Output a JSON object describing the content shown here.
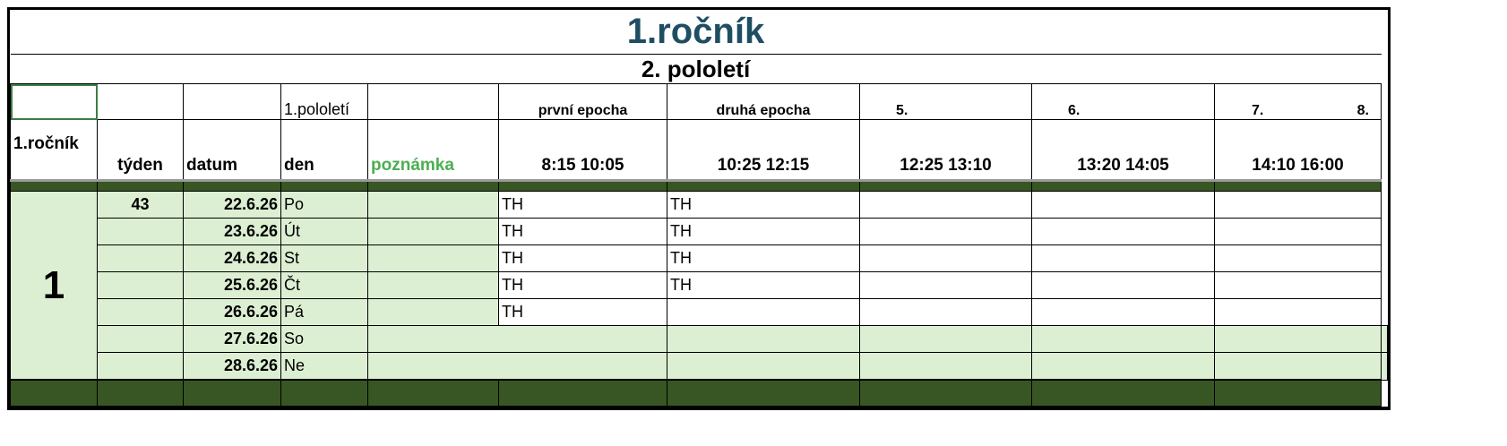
{
  "title": "1.ročník",
  "subtitle": "2. pololetí",
  "header_row1": [
    "",
    "",
    "",
    "1.pololetí",
    "",
    "první epocha",
    "druhá epocha",
    "5.",
    "6.",
    "7.",
    "8."
  ],
  "header_row2": [
    "1.ročník",
    "týden",
    "datum",
    "den",
    "poznámka",
    "8:15 10:05",
    "10:25 12:15",
    "12:25 13:10",
    "13:20 14:05",
    "14:10 16:00"
  ],
  "block_label": "1",
  "week": "43",
  "rows": [
    {
      "date": "22.6.26",
      "day": "Po",
      "p1": "TH",
      "p2": "TH",
      "weekend": false
    },
    {
      "date": "23.6.26",
      "day": "Út",
      "p1": "TH",
      "p2": "TH",
      "weekend": false
    },
    {
      "date": "24.6.26",
      "day": "St",
      "p1": "TH",
      "p2": "TH",
      "weekend": false
    },
    {
      "date": "25.6.26",
      "day": "Čt",
      "p1": "TH",
      "p2": "TH",
      "weekend": false
    },
    {
      "date": "26.6.26",
      "day": "Pá",
      "p1": "TH",
      "p2": "",
      "weekend": false
    },
    {
      "date": "27.6.26",
      "day": "So",
      "p1": "",
      "p2": "",
      "weekend": true
    },
    {
      "date": "28.6.26",
      "day": "Ne",
      "p1": "",
      "p2": "",
      "weekend": true
    }
  ],
  "colors": {
    "title": "#1f4e63",
    "band": "#375623",
    "light_green": "#ddefd3",
    "note_header": "#4caf50"
  }
}
